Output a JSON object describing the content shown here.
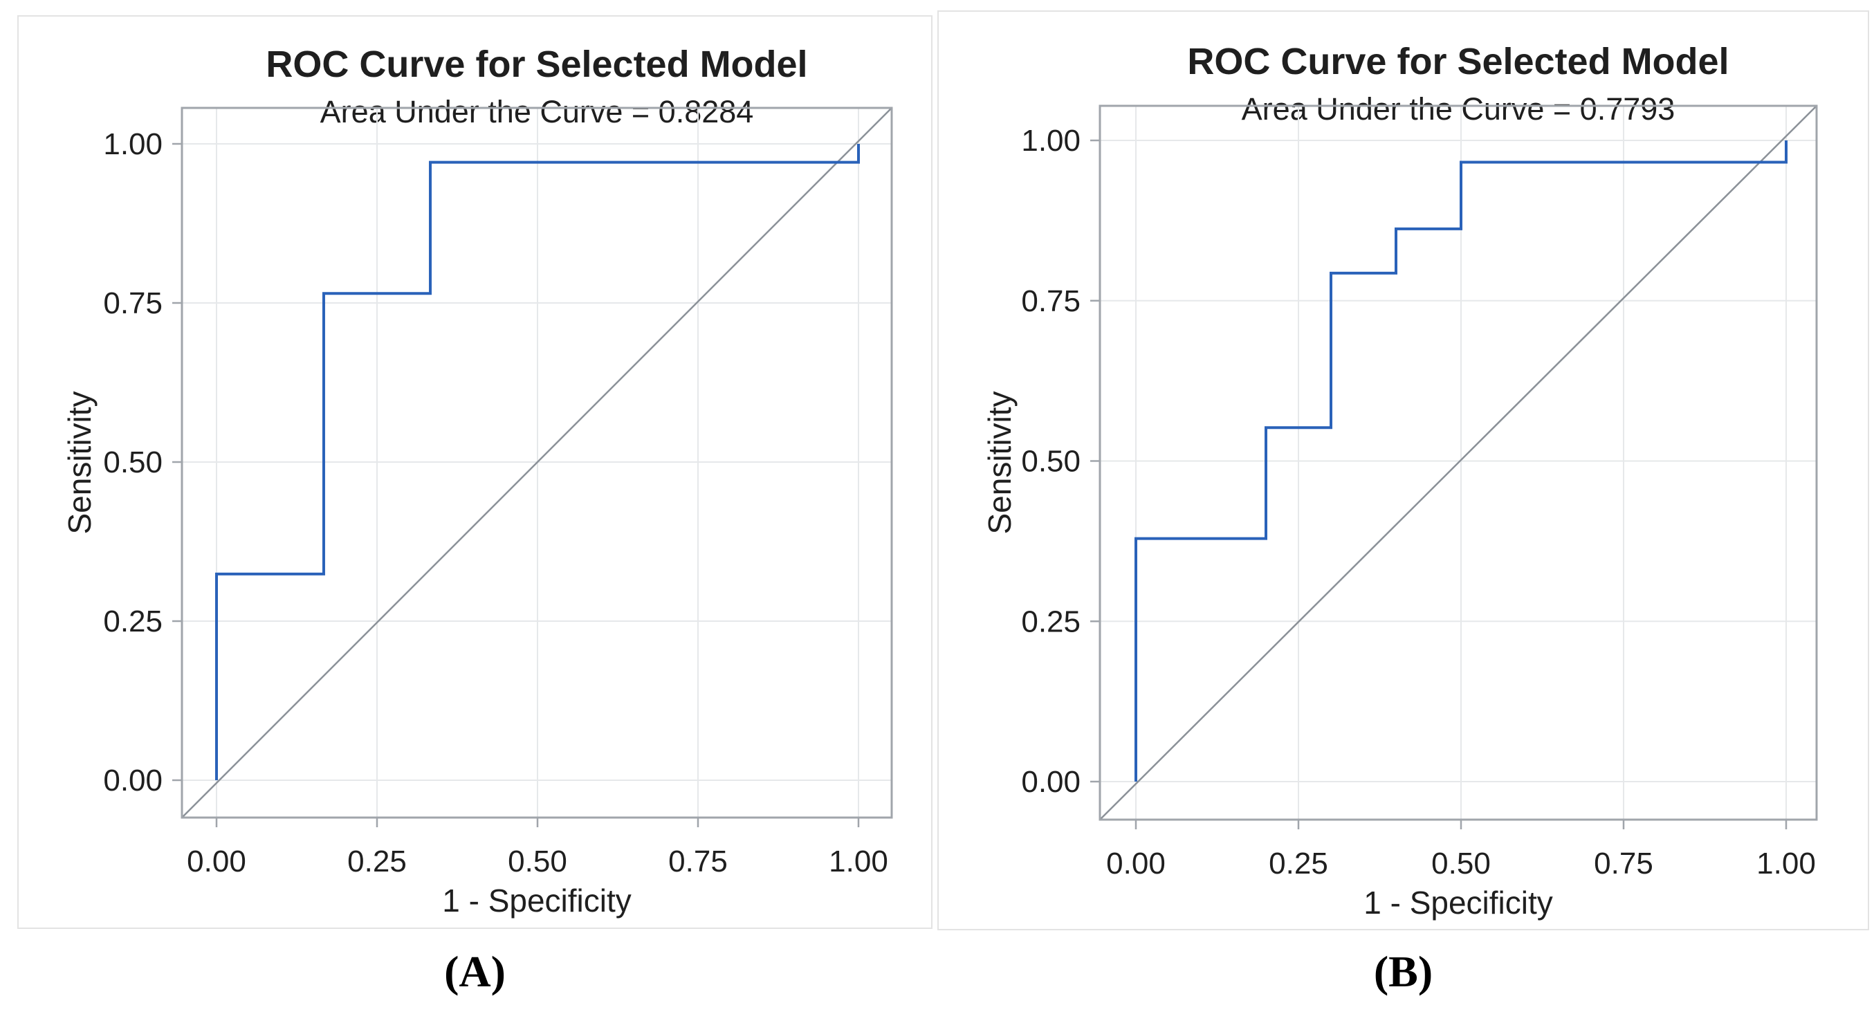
{
  "figure": {
    "background": "#ffffff",
    "text_color": "#1f1f1f"
  },
  "panels": [
    {
      "caption": "(A)"
    },
    {
      "caption": "(B)"
    }
  ],
  "chart_data": [
    {
      "type": "line",
      "subtype": "roc-step-curve",
      "title": "ROC Curve for Selected Model",
      "subtitle": "Area Under the Curve = 0.8284",
      "auc": 0.8284,
      "xlabel": "1 - Specificity",
      "ylabel": "Sensitivity",
      "xlim": [
        0,
        1
      ],
      "ylim": [
        0,
        1
      ],
      "xticks": [
        0,
        0.25,
        0.5,
        0.75,
        1
      ],
      "yticks": [
        0,
        0.25,
        0.5,
        0.75,
        1
      ],
      "xtick_labels": [
        "0.00",
        "0.25",
        "0.50",
        "0.75",
        "1.00"
      ],
      "ytick_labels": [
        "0.00",
        "0.25",
        "0.50",
        "0.75",
        "1.00"
      ],
      "grid": true,
      "legend": "none",
      "series": [
        {
          "name": "roc-curve",
          "color": "#2a62b9",
          "points": [
            [
              0,
              0
            ],
            [
              0,
              0.324
            ],
            [
              0.167,
              0.324
            ],
            [
              0.167,
              0.765
            ],
            [
              0.333,
              0.765
            ],
            [
              0.333,
              0.971
            ],
            [
              1,
              0.971
            ],
            [
              1,
              1
            ]
          ]
        },
        {
          "name": "reference-diagonal",
          "color": "#8b9198",
          "points": [
            [
              0,
              0
            ],
            [
              1,
              1
            ]
          ]
        }
      ],
      "colors": {
        "curve": "#2a62b9",
        "diagonal": "#8b9198",
        "grid": "#e6e8ea",
        "frame": "#a0a5ab",
        "text": "#1f1f1f"
      }
    },
    {
      "type": "line",
      "subtype": "roc-step-curve",
      "title": "ROC Curve for Selected Model",
      "subtitle": "Area Under the Curve = 0.7793",
      "auc": 0.7793,
      "xlabel": "1 - Specificity",
      "ylabel": "Sensitivity",
      "xlim": [
        0,
        1
      ],
      "ylim": [
        0,
        1
      ],
      "xticks": [
        0,
        0.25,
        0.5,
        0.75,
        1
      ],
      "yticks": [
        0,
        0.25,
        0.5,
        0.75,
        1
      ],
      "xtick_labels": [
        "0.00",
        "0.25",
        "0.50",
        "0.75",
        "1.00"
      ],
      "ytick_labels": [
        "0.00",
        "0.25",
        "0.50",
        "0.75",
        "1.00"
      ],
      "grid": true,
      "legend": "none",
      "series": [
        {
          "name": "roc-curve",
          "color": "#2a62b9",
          "points": [
            [
              0,
              0
            ],
            [
              0,
              0.379
            ],
            [
              0.2,
              0.379
            ],
            [
              0.2,
              0.552
            ],
            [
              0.3,
              0.552
            ],
            [
              0.3,
              0.793
            ],
            [
              0.4,
              0.793
            ],
            [
              0.4,
              0.862
            ],
            [
              0.5,
              0.862
            ],
            [
              0.5,
              0.966
            ],
            [
              1,
              0.966
            ],
            [
              1,
              1
            ]
          ]
        },
        {
          "name": "reference-diagonal",
          "color": "#8b9198",
          "points": [
            [
              0,
              0
            ],
            [
              1,
              1
            ]
          ]
        }
      ],
      "colors": {
        "curve": "#2a62b9",
        "diagonal": "#8b9198",
        "grid": "#e6e8ea",
        "frame": "#a0a5ab",
        "text": "#1f1f1f"
      }
    }
  ]
}
